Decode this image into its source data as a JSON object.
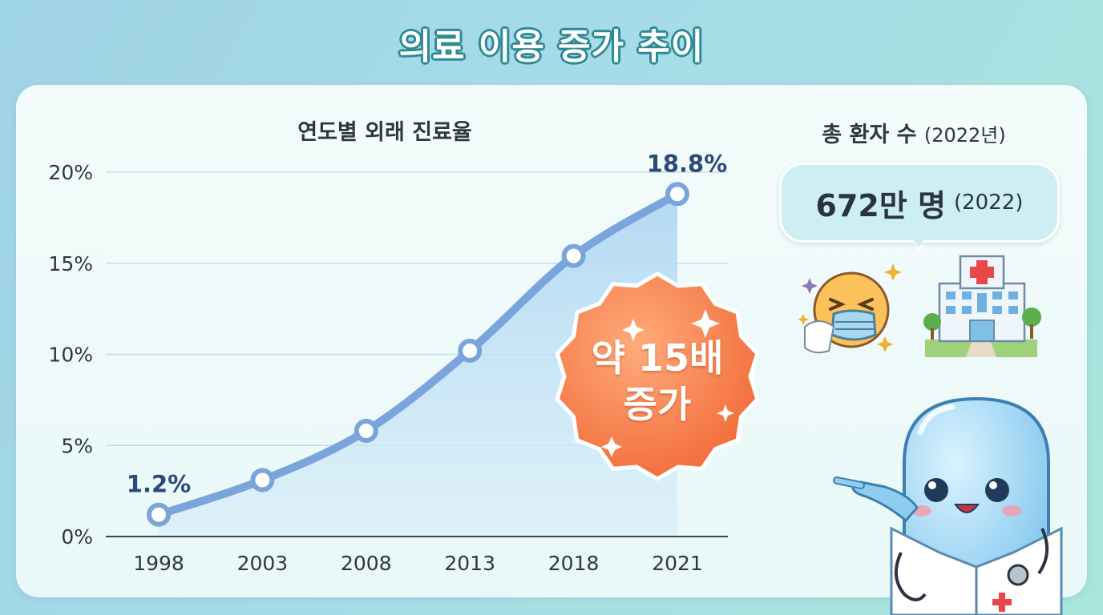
{
  "page_title": "의료 이용 증가 추이",
  "side_panel": {
    "title": "총 환자 수",
    "title_sub": "(2022년)",
    "value": "672만 명",
    "value_year": "(2022)"
  },
  "badge": {
    "line1": "약 15배",
    "line2": "증가"
  },
  "icons": [
    "sneezing-face-mask-icon",
    "hospital-building-icon",
    "capsule-doctor-mascot-icon"
  ],
  "colors": {
    "line": "#7aa4dc",
    "area": "#bfe0f6",
    "badge": "#f47a45",
    "title_outline": "#2e8a94"
  },
  "chart_data": {
    "type": "line",
    "title": "연도별 외래 진료율",
    "categories": [
      "1998",
      "2003",
      "2008",
      "2013",
      "2018",
      "2021"
    ],
    "values": [
      1.2,
      3.1,
      5.8,
      10.2,
      15.4,
      18.8
    ],
    "point_labels": [
      "1.2%",
      "",
      "",
      "",
      "",
      "18.8%"
    ],
    "ylim": [
      0,
      20
    ],
    "yticks": [
      0,
      5,
      10,
      15,
      20
    ],
    "ytick_labels": [
      "0%",
      "5%",
      "10%",
      "15%",
      "20%"
    ],
    "xlabel": "",
    "ylabel": "",
    "grid": true,
    "legend": "none"
  }
}
